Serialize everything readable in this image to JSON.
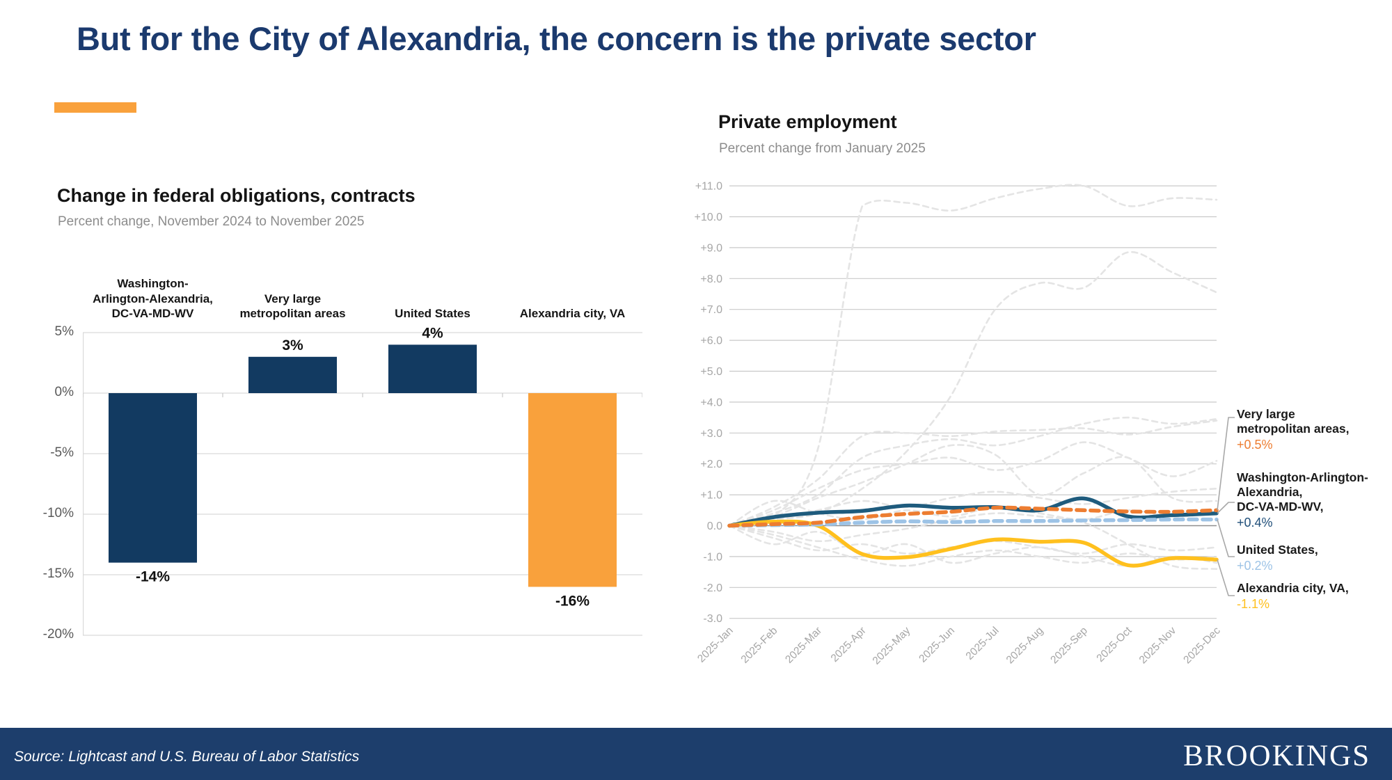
{
  "slide": {
    "title": "But for the City of Alexandria, the concern is the private sector",
    "footer": {
      "source": "Source: Lightcast and U.S. Bureau of Labor Statistics",
      "brand": "BROOKINGS"
    },
    "colors": {
      "title_navy": "#1B3A6E",
      "accent_orange": "#F9A13C",
      "footer_navy": "#1D3E6C",
      "bar_navy": "#123A61",
      "bar_orange": "#F9A13C",
      "line_navy": "#1E5B7D",
      "line_orange": "#ED7D31",
      "line_lightblue": "#9DC3E6",
      "line_yellow": "#FFC01E",
      "background_line_gray": "#E4E4E4"
    }
  },
  "chart_data": [
    {
      "type": "bar",
      "title": "Change in federal obligations, contracts",
      "subtitle": "Percent change, November 2024 to November 2025",
      "categories": [
        "Washington-Arlington-Alexandria, DC-VA-MD-WV",
        "Very large metropolitan areas",
        "United States",
        "Alexandria city, VA"
      ],
      "category_lines": [
        [
          "Washington-",
          "Arlington-Alexandria,",
          "DC-VA-MD-WV"
        ],
        [
          "Very large",
          "metropolitan areas"
        ],
        [
          "United States"
        ],
        [
          "Alexandria city, VA"
        ]
      ],
      "values": [
        -14,
        3,
        4,
        -16
      ],
      "value_labels": [
        "-14%",
        "3%",
        "4%",
        "-16%"
      ],
      "bar_colors": [
        "#123A61",
        "#123A61",
        "#123A61",
        "#F9A13C"
      ],
      "ylim": [
        -20,
        5
      ],
      "ytick_values": [
        5,
        0,
        -5,
        -10,
        -15,
        -20
      ],
      "yticks": [
        "5%",
        "0%",
        "-5%",
        "-10%",
        "-15%",
        "-20%"
      ],
      "grid": true,
      "legend_position": "none"
    },
    {
      "type": "line",
      "title": "Private employment",
      "subtitle": "Percent change from January 2025",
      "x": [
        "2025-Jan",
        "2025-Feb",
        "2025-Mar",
        "2025-Apr",
        "2025-May",
        "2025-Jun",
        "2025-Jul",
        "2025-Aug",
        "2025-Sep",
        "2025-Oct",
        "2025-Nov",
        "2025-Dec"
      ],
      "ylim": [
        -3,
        11
      ],
      "ytick_values": [
        11,
        10,
        9,
        8,
        7,
        6,
        5,
        4,
        3,
        2,
        1,
        0,
        -1,
        -2,
        -3
      ],
      "ytick_labels": [
        "+11.0",
        "+10.0",
        "+9.0",
        "+8.0",
        "+7.0",
        "+6.0",
        "+5.0",
        "+4.0",
        "+3.0",
        "+2.0",
        "+1.0",
        "0.0",
        "-1.0",
        "-2.0",
        "-3.0"
      ],
      "grid": true,
      "series": [
        {
          "id": "very-large-metros",
          "name": "Very large metropolitan areas",
          "color": "#ED7D31",
          "dash": "12 8",
          "final_label": "+0.5%",
          "values": [
            0,
            0.05,
            0.1,
            0.28,
            0.38,
            0.45,
            0.58,
            0.55,
            0.5,
            0.46,
            0.45,
            0.5
          ]
        },
        {
          "id": "washington-msa",
          "name": "Washington-Arlington-Alexandria, DC-VA-MD-WV",
          "color": "#1E5B7D",
          "dash": "",
          "final_label": "+0.4%",
          "values": [
            0,
            0.28,
            0.42,
            0.48,
            0.65,
            0.58,
            0.6,
            0.5,
            0.88,
            0.3,
            0.34,
            0.4
          ]
        },
        {
          "id": "united-states",
          "name": "United States",
          "color": "#9DC3E6",
          "dash": "12 8",
          "final_label": "+0.2%",
          "values": [
            0,
            0.02,
            0.04,
            0.1,
            0.14,
            0.12,
            0.15,
            0.15,
            0.17,
            0.18,
            0.2,
            0.2
          ]
        },
        {
          "id": "alexandria-city",
          "name": "Alexandria city, VA",
          "color": "#FFC01E",
          "dash": "",
          "final_label": "-1.1%",
          "values": [
            0,
            0.13,
            0,
            -0.92,
            -1.02,
            -0.75,
            -0.45,
            -0.52,
            -0.55,
            -1.28,
            -1.05,
            -1.1
          ]
        }
      ],
      "background_series": [
        [
          0,
          0.3,
          2.5,
          10.35,
          10.45,
          10.2,
          10.6,
          10.9,
          11.0,
          10.35,
          10.6,
          10.55
        ],
        [
          0,
          0.2,
          0.4,
          1.2,
          2.4,
          4.2,
          7.0,
          7.85,
          7.7,
          8.85,
          8.2,
          7.55
        ],
        [
          0,
          0.6,
          1.5,
          2.9,
          3.0,
          2.9,
          3.05,
          3.1,
          3.15,
          2.95,
          3.2,
          3.4
        ],
        [
          0,
          0.4,
          1.0,
          2.2,
          2.6,
          2.8,
          2.6,
          2.9,
          3.3,
          3.5,
          3.3,
          3.45
        ],
        [
          0,
          0.5,
          1.2,
          1.8,
          2.0,
          2.2,
          1.8,
          2.1,
          2.7,
          2.2,
          1.6,
          2.1
        ],
        [
          0,
          0.3,
          0.9,
          1.4,
          2.0,
          2.6,
          2.3,
          1.0,
          1.7,
          2.2,
          0.9,
          0.8
        ],
        [
          0,
          0.2,
          0.5,
          0.8,
          0.6,
          0.9,
          1.1,
          0.9,
          0.7,
          0.9,
          1.1,
          1.2
        ],
        [
          0,
          -0.2,
          -0.5,
          -0.3,
          -0.1,
          0.2,
          0.4,
          0.3,
          0.1,
          -0.6,
          -1.3,
          -1.4
        ],
        [
          0,
          -0.4,
          -0.8,
          -0.6,
          -0.9,
          -0.7,
          -0.5,
          -0.7,
          -0.9,
          -0.6,
          -0.8,
          -0.7
        ],
        [
          0,
          -0.3,
          -0.7,
          -1.1,
          -1.3,
          -1.0,
          -0.8,
          -1.0,
          -1.2,
          -0.9,
          -1.1,
          -1.0
        ],
        [
          0,
          0.8,
          0.4,
          0.2,
          0.5,
          0.3,
          0.6,
          0.4,
          0.2,
          0.5,
          0.3,
          0.4
        ],
        [
          0,
          -0.6,
          -0.2,
          -0.9,
          -0.6,
          -1.2,
          -0.9,
          -0.7,
          -1.0,
          -1.3,
          -1.0,
          -1.2
        ]
      ],
      "callouts": [
        {
          "lines": [
            "Very large",
            "metropolitan areas,"
          ],
          "value": "+0.5%",
          "value_color": "#ED7D31"
        },
        {
          "lines": [
            "Washington-Arlington-",
            "Alexandria,",
            "DC-VA-MD-WV,"
          ],
          "value": "+0.4%",
          "value_color": "#1F4E79"
        },
        {
          "lines": [
            "United States,"
          ],
          "value": "+0.2%",
          "value_color": "#9DC3E6"
        },
        {
          "lines": [
            "Alexandria city, VA,"
          ],
          "value": "-1.1%",
          "value_color": "#FFC01E"
        }
      ],
      "legend_position": "right-callouts"
    }
  ]
}
